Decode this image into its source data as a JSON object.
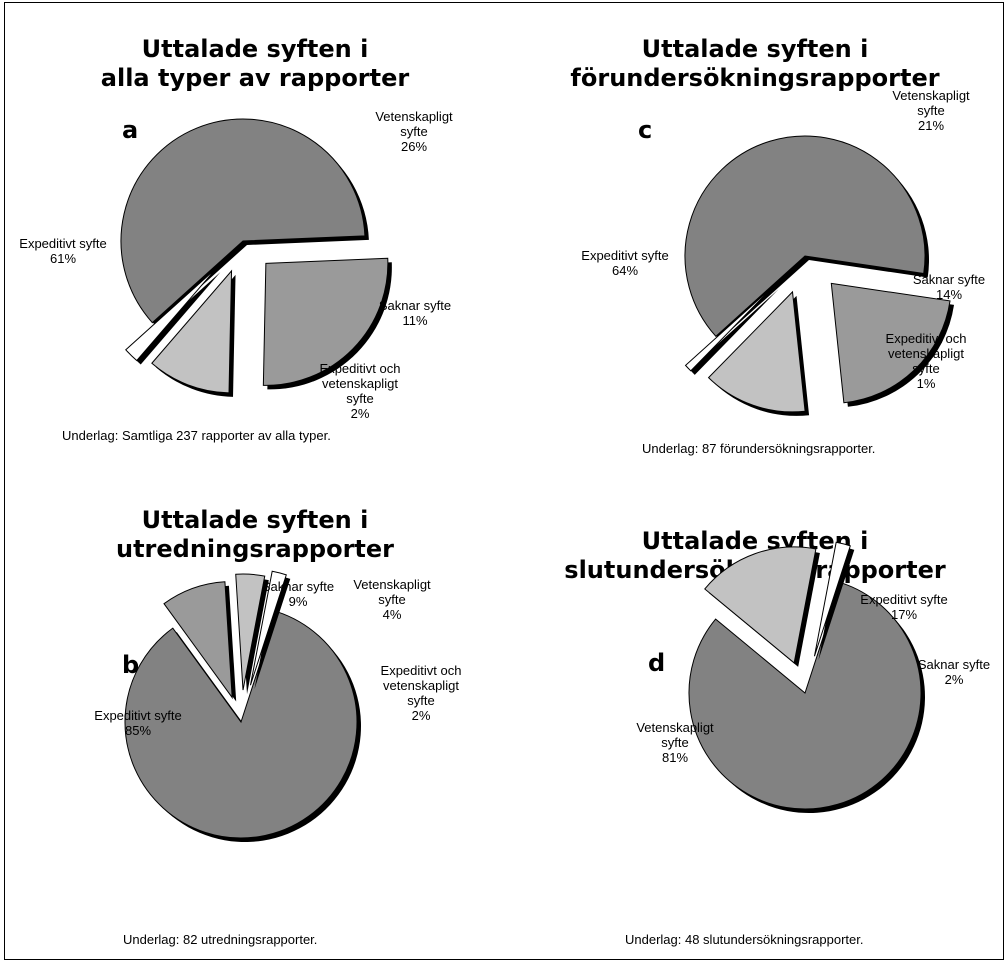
{
  "chart_data": [
    {
      "type": "pie",
      "letter": "a",
      "title": [
        "Uttalade syften i",
        "alla typer av rapporter"
      ],
      "source": "Underlag: Samtliga 237 rapporter av alla typer.",
      "slices": [
        {
          "label": [
            "Expeditivt syfte",
            "61%"
          ],
          "value": 61,
          "color": "#828282"
        },
        {
          "label": [
            "Vetenskapligt",
            "syfte",
            "26%"
          ],
          "value": 26,
          "color": "#9a9a9a"
        },
        {
          "label": [
            "Saknar syfte",
            "11%"
          ],
          "value": 11,
          "color": "#c2c2c2"
        },
        {
          "label": [
            "Expeditivt och",
            "vetenskapligt",
            "syfte",
            "2%"
          ],
          "value": 2,
          "color": "#ffffff"
        }
      ]
    },
    {
      "type": "pie",
      "letter": "c",
      "title": [
        "Uttalade syften i",
        "förundersökningsrapporter"
      ],
      "source": "Underlag: 87 förundersökningsrapporter.",
      "slices": [
        {
          "label": [
            "Expeditivt syfte",
            "64%"
          ],
          "value": 64,
          "color": "#828282"
        },
        {
          "label": [
            "Vetenskapligt",
            "syfte",
            "21%"
          ],
          "value": 21,
          "color": "#9a9a9a"
        },
        {
          "label": [
            "Saknar syfte",
            "14%"
          ],
          "value": 14,
          "color": "#c2c2c2"
        },
        {
          "label": [
            "Expeditivt och",
            "vetenskapligt",
            "syfte",
            "1%"
          ],
          "value": 1,
          "color": "#ffffff"
        }
      ]
    },
    {
      "type": "pie",
      "letter": "b",
      "title": [
        "Uttalade syften i",
        "utredningsrapporter"
      ],
      "source": "Underlag: 82 utredningsrapporter.",
      "slices": [
        {
          "label": [
            "Expeditivt syfte",
            "85%"
          ],
          "value": 85,
          "color": "#828282"
        },
        {
          "label": [
            "Saknar syfte",
            "9%"
          ],
          "value": 9,
          "color": "#9a9a9a"
        },
        {
          "label": [
            "Vetenskapligt",
            "syfte",
            "4%"
          ],
          "value": 4,
          "color": "#c2c2c2"
        },
        {
          "label": [
            "Expeditivt och",
            "vetenskapligt",
            "syfte",
            "2%"
          ],
          "value": 2,
          "color": "#ffffff"
        }
      ]
    },
    {
      "type": "pie",
      "letter": "d",
      "title": [
        "Uttalade syften i",
        "slutundersökningsrapporter"
      ],
      "source": "Underlag: 48 slutundersökningsrapporter.",
      "slices": [
        {
          "label": [
            "Vetenskapligt",
            "syfte",
            "81%"
          ],
          "value": 81,
          "color": "#828282"
        },
        {
          "label": [
            "Expeditivt syfte",
            "17%"
          ],
          "value": 17,
          "color": "#c2c2c2"
        },
        {
          "label": [
            "Saknar syfte",
            "2%"
          ],
          "value": 2,
          "color": "#ffffff"
        }
      ]
    }
  ]
}
